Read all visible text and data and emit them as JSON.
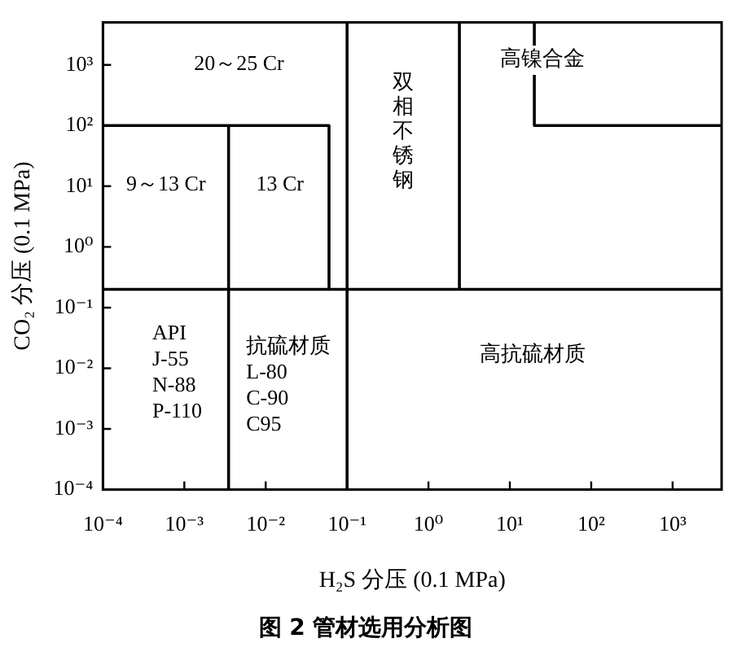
{
  "chart_data": {
    "type": "line",
    "title": "图 2 管材选用分析图",
    "xlabel": "H₂S 分压 (0.1 MPa)",
    "ylabel": "CO₂ 分压 (0.1 MPa)",
    "log": "xy",
    "marker": "none",
    "xlim": [
      0.0001,
      4000
    ],
    "ylim": [
      0.0001,
      5000
    ],
    "xticks": [
      {
        "value": 0.0001,
        "label": "10⁻⁴"
      },
      {
        "value": 0.001,
        "label": "10⁻³"
      },
      {
        "value": 0.01,
        "label": "10⁻²"
      },
      {
        "value": 0.1,
        "label": "10⁻¹"
      },
      {
        "value": 1,
        "label": "10⁰"
      },
      {
        "value": 10,
        "label": "10¹"
      },
      {
        "value": 100,
        "label": "10²"
      },
      {
        "value": 1000,
        "label": "10³"
      }
    ],
    "yticks": [
      {
        "value": 0.0001,
        "label": "10⁻⁴"
      },
      {
        "value": 0.001,
        "label": "10⁻³"
      },
      {
        "value": 0.01,
        "label": "10⁻²"
      },
      {
        "value": 0.1,
        "label": "10⁻¹"
      },
      {
        "value": 1,
        "label": "10⁰"
      },
      {
        "value": 10,
        "label": "10¹"
      },
      {
        "value": 100,
        "label": "10²"
      },
      {
        "value": 1000,
        "label": "10³"
      }
    ],
    "series": [
      {
        "color": "#000000",
        "x": [
          0.0001,
          4000
        ],
        "values": [
          0.2,
          0.2
        ]
      },
      {
        "color": "#000000",
        "x": [
          0.0035,
          0.0035
        ],
        "values": [
          0.0001,
          100
        ]
      },
      {
        "color": "#000000",
        "x": [
          0.0001,
          0.06,
          0.06
        ],
        "values": [
          100,
          100,
          0.2
        ]
      },
      {
        "color": "#000000",
        "x": [
          0.1,
          0.1
        ],
        "values": [
          0.0001,
          5000
        ]
      },
      {
        "color": "#000000",
        "x": [
          2.4,
          2.4
        ],
        "values": [
          0.2,
          5000
        ]
      },
      {
        "color": "#000000",
        "x": [
          20,
          20,
          4000
        ],
        "values": [
          5000,
          100,
          100
        ]
      }
    ],
    "annotations": [
      "20～25 Cr",
      "9～13 Cr",
      "13 Cr",
      "双相不锈钢",
      "高镍合金",
      "API\nJ-55\nN-88\nP-110",
      "抗硫材质\nL-80\nC-90\nC95",
      "高抗硫材质"
    ]
  }
}
